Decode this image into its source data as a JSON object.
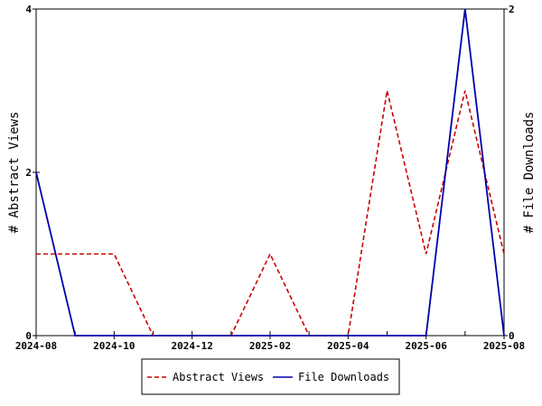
{
  "chart_data": {
    "type": "line",
    "title": "",
    "x": [
      "2024-08",
      "2024-09",
      "2024-10",
      "2024-11",
      "2024-12",
      "2025-01",
      "2025-02",
      "2025-03",
      "2025-04",
      "2025-05",
      "2025-06",
      "2025-07",
      "2025-08"
    ],
    "x_ticks": [
      "2024-08",
      "2024-10",
      "2024-12",
      "2025-02",
      "2025-04",
      "2025-06",
      "2025-08"
    ],
    "ylabel_left": "# Abstract Views",
    "ylabel_right": "# File Downloads",
    "ylim_left": [
      0,
      4
    ],
    "ylim_right": [
      0,
      2
    ],
    "yticks_left": [
      0,
      2,
      4
    ],
    "yticks_right": [
      0,
      2
    ],
    "grid": false,
    "legend_position": "bottom-center",
    "series": [
      {
        "name": "Abstract Views",
        "axis": "left",
        "color": "#cc0000",
        "style": "dashed",
        "values": [
          1,
          1,
          1,
          0,
          0,
          0,
          1,
          0,
          0,
          3,
          1,
          3,
          1
        ]
      },
      {
        "name": "File Downloads",
        "axis": "right",
        "color": "#0000aa",
        "style": "solid",
        "values": [
          1,
          0,
          0,
          0,
          0,
          0,
          0,
          0,
          0,
          0,
          0,
          2,
          0
        ]
      }
    ]
  }
}
